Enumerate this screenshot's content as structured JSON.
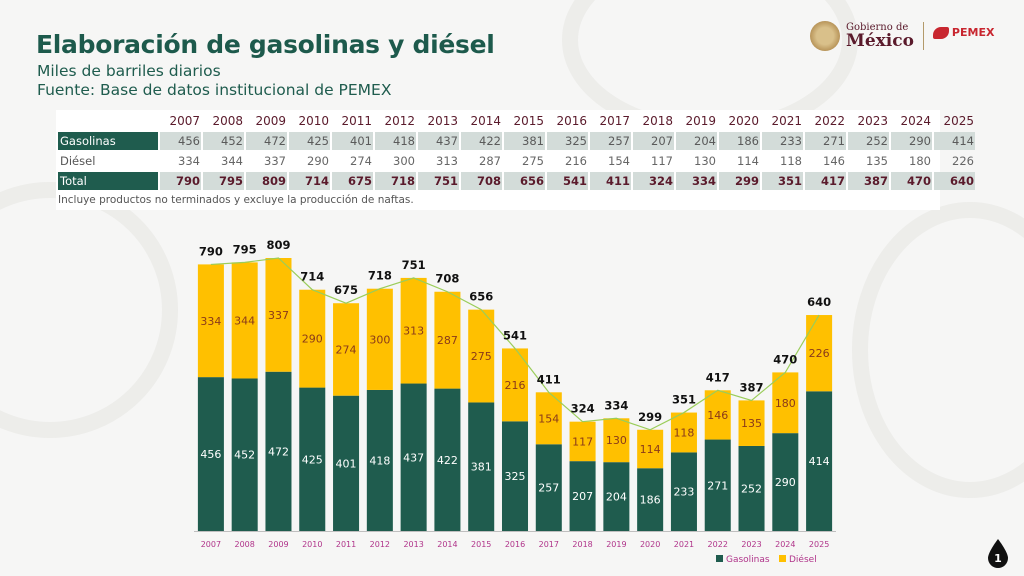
{
  "header": {
    "title": "Elaboración de gasolinas y diésel",
    "subtitle": "Miles de barriles diarios",
    "source": "Fuente: Base de datos institucional de PEMEX"
  },
  "logos": {
    "gobierno_small": "Gobierno de",
    "gobierno_big": "México",
    "pemex": "PEMEX"
  },
  "table": {
    "years": [
      "2007",
      "2008",
      "2009",
      "2010",
      "2011",
      "2012",
      "2013",
      "2014",
      "2015",
      "2016",
      "2017",
      "2018",
      "2019",
      "2020",
      "2021",
      "2022",
      "2023",
      "2024",
      "2025"
    ],
    "rows": [
      {
        "label": "Gasolinas",
        "values": [
          "456",
          "452",
          "472",
          "425",
          "401",
          "418",
          "437",
          "422",
          "381",
          "325",
          "257",
          "207",
          "204",
          "186",
          "233",
          "271",
          "252",
          "290",
          "414"
        ]
      },
      {
        "label": "Diésel",
        "values": [
          "334",
          "344",
          "337",
          "290",
          "274",
          "300",
          "313",
          "287",
          "275",
          "216",
          "154",
          "117",
          "130",
          "114",
          "118",
          "146",
          "135",
          "180",
          "226"
        ]
      },
      {
        "label": "Total",
        "values": [
          "790",
          "795",
          "809",
          "714",
          "675",
          "718",
          "751",
          "708",
          "656",
          "541",
          "411",
          "324",
          "334",
          "299",
          "351",
          "417",
          "387",
          "470",
          "640"
        ]
      }
    ],
    "footnote": "Incluye productos no terminados y excluye la producción de naftas."
  },
  "chart_data": {
    "type": "bar",
    "stacked": true,
    "title": "Elaboración de gasolinas y diésel",
    "ylabel": "Miles de barriles diarios",
    "xlabel": "",
    "categories": [
      "2007",
      "2008",
      "2009",
      "2010",
      "2011",
      "2012",
      "2013",
      "2014",
      "2015",
      "2016",
      "2017",
      "2018",
      "2019",
      "2020",
      "2021",
      "2022",
      "2023",
      "2024",
      "2025"
    ],
    "series": [
      {
        "name": "Gasolinas",
        "color": "#1f5c4e",
        "values": [
          456,
          452,
          472,
          425,
          401,
          418,
          437,
          422,
          381,
          325,
          257,
          207,
          204,
          186,
          233,
          271,
          252,
          290,
          414
        ]
      },
      {
        "name": "Diésel",
        "color": "#ffc000",
        "values": [
          334,
          344,
          337,
          290,
          274,
          300,
          313,
          287,
          275,
          216,
          154,
          117,
          130,
          114,
          118,
          146,
          135,
          180,
          226
        ]
      }
    ],
    "totals": [
      790,
      795,
      809,
      714,
      675,
      718,
      751,
      708,
      656,
      541,
      411,
      324,
      334,
      299,
      351,
      417,
      387,
      470,
      640
    ],
    "total_line_color": "#9acd5a",
    "ylim": [
      0,
      850
    ],
    "grid": false,
    "legend": "bottom-right",
    "legend_entries": [
      "Gasolinas",
      "Diésel"
    ],
    "tick_color": "#b0348a"
  },
  "page_number": "1"
}
